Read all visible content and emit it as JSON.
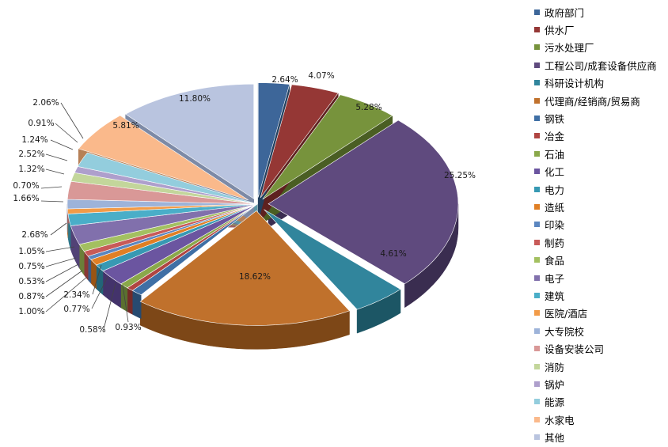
{
  "chart_data": {
    "type": "pie",
    "title": "",
    "legend_position": "right",
    "categories": [
      "政府部门",
      "供水厂",
      "污水处理厂",
      "工程公司/成套设备供应商",
      "科研设计机构",
      "代理商/经销商/贸易商",
      "钢铁",
      "冶金",
      "石油",
      "化工",
      "电力",
      "造纸",
      "印染",
      "制药",
      "食品",
      "电子",
      "建筑",
      "医院/酒店",
      "大专院校",
      "设备安装公司",
      "消防",
      "锅炉",
      "能源",
      "水家电",
      "其他"
    ],
    "values": [
      2.64,
      4.07,
      5.28,
      25.25,
      4.61,
      18.62,
      0.93,
      0.58,
      0.77,
      2.34,
      1.0,
      0.87,
      0.53,
      0.75,
      1.05,
      2.68,
      1.66,
      0.7,
      1.32,
      2.52,
      1.24,
      0.91,
      2.06,
      5.81,
      11.8
    ],
    "labels": [
      "2.64%",
      "4.07%",
      "5.28%",
      "25.25%",
      "4.61%",
      "18.62%",
      "0.93%",
      "0.58%",
      "0.77%",
      "2.34%",
      "1.00%",
      "0.87%",
      "0.53%",
      "0.75%",
      "1.05%",
      "2.68%",
      "1.66%",
      "0.70%",
      "1.32%",
      "2.52%",
      "1.24%",
      "0.91%",
      "2.06%",
      "5.81%",
      "11.80%"
    ],
    "colors": [
      "#3d6699",
      "#953735",
      "#77933c",
      "#5f4a7e",
      "#31859c",
      "#c0712c",
      "#3f6fa5",
      "#b04542",
      "#8aa84a",
      "#6b55a0",
      "#3799b3",
      "#e07f24",
      "#5b86c0",
      "#c85a58",
      "#a3c060",
      "#8170ac",
      "#4aaec8",
      "#f29b48",
      "#9db3d9",
      "#d99897",
      "#c3d69b",
      "#ae9fcc",
      "#93cddd",
      "#fab98b",
      "#b9c4df"
    ],
    "dark_colors": [
      "#22405f",
      "#5e211f",
      "#4a5e23",
      "#3a2d50",
      "#1c5665",
      "#7d4717",
      "#274a70",
      "#752a28",
      "#5a7030",
      "#43336b",
      "#226578",
      "#9a5413",
      "#3a5a86",
      "#8a3735",
      "#6b7f39",
      "#524276",
      "#2d7589",
      "#a9692b",
      "#6b7fa3",
      "#9e6261",
      "#8a9b63",
      "#76668f",
      "#5e97a6",
      "#b68057",
      "#7d8aa6"
    ]
  }
}
